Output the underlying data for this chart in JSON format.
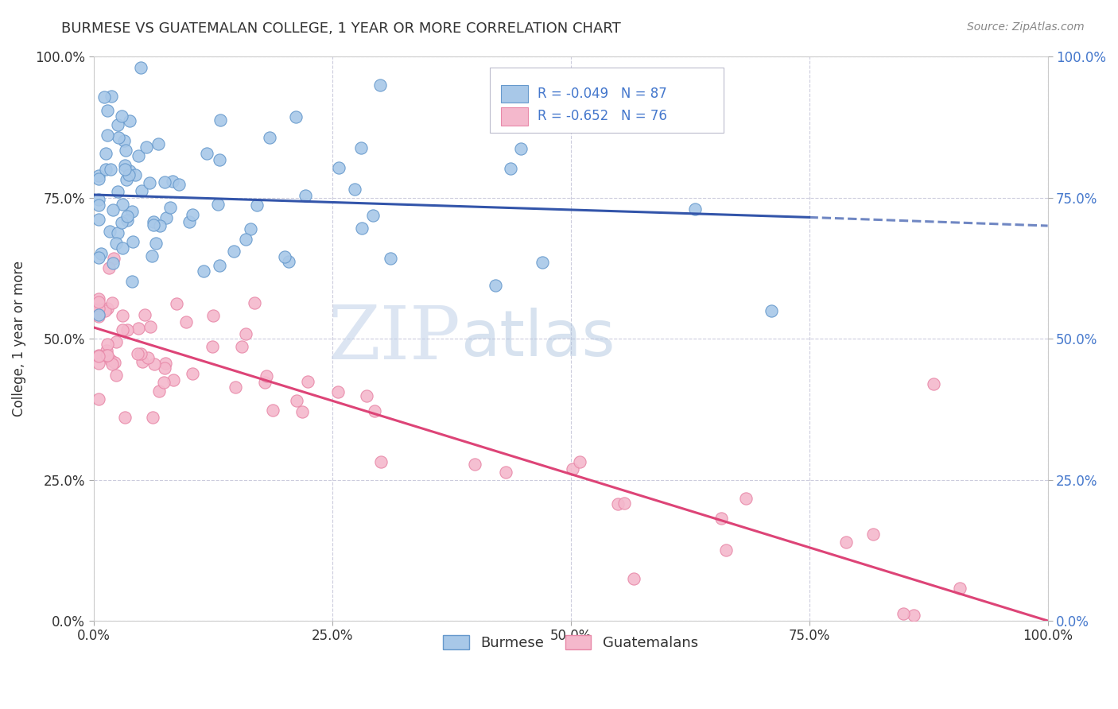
{
  "title": "BURMESE VS GUATEMALAN COLLEGE, 1 YEAR OR MORE CORRELATION CHART",
  "source": "Source: ZipAtlas.com",
  "ylabel": "College, 1 year or more",
  "xmin": 0.0,
  "xmax": 1.0,
  "ymin": 0.0,
  "ymax": 1.0,
  "xticks": [
    0.0,
    0.25,
    0.5,
    0.75,
    1.0
  ],
  "xtick_labels": [
    "0.0%",
    "25.0%",
    "50.0%",
    "75.0%",
    "100.0%"
  ],
  "yticks": [
    0.0,
    0.25,
    0.5,
    0.75,
    1.0
  ],
  "ytick_labels": [
    "0.0%",
    "25.0%",
    "50.0%",
    "75.0%",
    "100.0%"
  ],
  "blue_color": "#a8c8e8",
  "pink_color": "#f4b8cc",
  "blue_edge": "#6699cc",
  "pink_edge": "#e888a8",
  "blue_line_color": "#3355aa",
  "pink_line_color": "#dd4477",
  "blue_R": -0.049,
  "blue_N": 87,
  "pink_R": -0.652,
  "pink_N": 76,
  "legend_label_blue": "Burmese",
  "legend_label_pink": "Guatemalans",
  "watermark_zip": "ZIP",
  "watermark_atlas": "atlas",
  "background_color": "#ffffff",
  "grid_color": "#ccccdd",
  "title_color": "#333333",
  "source_color": "#888888",
  "tick_color_left": "#333333",
  "tick_color_right": "#4477cc",
  "legend_text_color": "#4477cc",
  "blue_trend_x0": 0.0,
  "blue_trend_y0": 0.755,
  "blue_trend_x1": 0.75,
  "blue_trend_y1": 0.715,
  "blue_trend_dash_x0": 0.75,
  "blue_trend_dash_y0": 0.715,
  "blue_trend_dash_x1": 1.0,
  "blue_trend_dash_y1": 0.7,
  "pink_trend_x0": 0.0,
  "pink_trend_y0": 0.52,
  "pink_trend_x1": 1.0,
  "pink_trend_y1": 0.0
}
